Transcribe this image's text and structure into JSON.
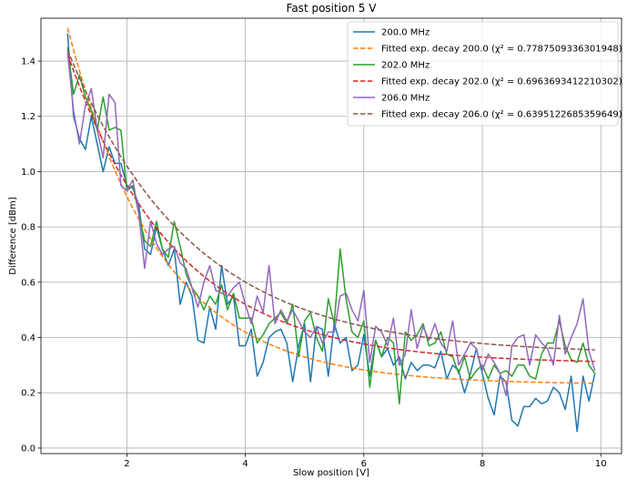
{
  "chart_data": {
    "type": "line",
    "title": "Fast position 5 V",
    "xlabel": "Slow position [V]",
    "ylabel": "Difference [dBm]",
    "xlim": [
      0.55,
      10.35
    ],
    "ylim": [
      -0.02,
      1.555
    ],
    "xticks": [
      2,
      4,
      6,
      8,
      10
    ],
    "yticks": [
      0.0,
      0.2,
      0.4,
      0.6,
      0.8,
      1.0,
      1.2,
      1.4
    ],
    "ytick_labels": [
      "0.0",
      "0.2",
      "0.4",
      "0.6",
      "0.8",
      "1.0",
      "1.2",
      "1.4"
    ],
    "xtick_labels": [
      "2",
      "4",
      "6",
      "8",
      "10"
    ],
    "grid": true,
    "legend_position": "top-right",
    "x": [
      1.0,
      1.1,
      1.2,
      1.3,
      1.4,
      1.5,
      1.6,
      1.7,
      1.8,
      1.9,
      2.0,
      2.1,
      2.2,
      2.3,
      2.4,
      2.5,
      2.6,
      2.7,
      2.8,
      2.9,
      3.0,
      3.1,
      3.2,
      3.3,
      3.4,
      3.5,
      3.6,
      3.7,
      3.8,
      3.9,
      4.0,
      4.1,
      4.2,
      4.3,
      4.4,
      4.5,
      4.6,
      4.7,
      4.8,
      4.9,
      5.0,
      5.1,
      5.2,
      5.3,
      5.4,
      5.5,
      5.6,
      5.7,
      5.8,
      5.9,
      6.0,
      6.1,
      6.2,
      6.3,
      6.4,
      6.5,
      6.6,
      6.7,
      6.8,
      6.9,
      7.0,
      7.1,
      7.2,
      7.3,
      7.4,
      7.5,
      7.6,
      7.7,
      7.8,
      7.9,
      8.0,
      8.1,
      8.2,
      8.3,
      8.4,
      8.5,
      8.6,
      8.7,
      8.8,
      8.9,
      9.0,
      9.1,
      9.2,
      9.3,
      9.4,
      9.5,
      9.6,
      9.7,
      9.8,
      9.9
    ],
    "series": [
      {
        "name": "200.0 MHz",
        "color": "#1f77b4",
        "style": "solid",
        "values": [
          1.5,
          1.2,
          1.12,
          1.08,
          1.2,
          1.1,
          1.0,
          1.09,
          1.03,
          1.03,
          0.95,
          0.94,
          0.88,
          0.72,
          0.7,
          0.8,
          0.72,
          0.66,
          0.72,
          0.52,
          0.6,
          0.55,
          0.39,
          0.38,
          0.51,
          0.43,
          0.66,
          0.52,
          0.55,
          0.37,
          0.37,
          0.43,
          0.26,
          0.31,
          0.4,
          0.42,
          0.43,
          0.38,
          0.24,
          0.37,
          0.45,
          0.24,
          0.44,
          0.43,
          0.26,
          0.45,
          0.38,
          0.4,
          0.28,
          0.3,
          0.41,
          0.26,
          0.39,
          0.33,
          0.36,
          0.3,
          0.33,
          0.25,
          0.31,
          0.28,
          0.3,
          0.3,
          0.29,
          0.35,
          0.25,
          0.3,
          0.28,
          0.2,
          0.27,
          0.36,
          0.27,
          0.18,
          0.12,
          0.26,
          0.24,
          0.1,
          0.08,
          0.15,
          0.15,
          0.18,
          0.16,
          0.17,
          0.22,
          0.2,
          0.14,
          0.26,
          0.06,
          0.26,
          0.17,
          0.27
        ]
      },
      {
        "name": "Fitted exp. decay 200.0 ($\\chi^2 = 0.778750933630194$8)",
        "legend_label": "Fitted exp. decay 200.0 (χ² = 0.7787509336301948)",
        "color": "#ff7f0e",
        "style": "dashed",
        "model": {
          "a": 1.29,
          "k": 0.64,
          "c": 0.23,
          "x0": 1.0
        }
      },
      {
        "name": "202.0 MHz",
        "color": "#2ca02c",
        "style": "solid",
        "values": [
          1.45,
          1.28,
          1.35,
          1.27,
          1.22,
          1.15,
          1.27,
          1.15,
          1.16,
          1.15,
          0.93,
          0.95,
          0.85,
          0.75,
          0.73,
          0.82,
          0.72,
          0.69,
          0.82,
          0.73,
          0.63,
          0.58,
          0.55,
          0.5,
          0.55,
          0.52,
          0.59,
          0.5,
          0.56,
          0.47,
          0.47,
          0.47,
          0.38,
          0.41,
          0.45,
          0.47,
          0.49,
          0.45,
          0.52,
          0.33,
          0.46,
          0.49,
          0.4,
          0.35,
          0.54,
          0.45,
          0.72,
          0.54,
          0.42,
          0.4,
          0.46,
          0.22,
          0.39,
          0.33,
          0.4,
          0.38,
          0.16,
          0.42,
          0.39,
          0.41,
          0.45,
          0.37,
          0.38,
          0.42,
          0.34,
          0.33,
          0.27,
          0.33,
          0.25,
          0.28,
          0.3,
          0.25,
          0.3,
          0.27,
          0.28,
          0.26,
          0.3,
          0.3,
          0.26,
          0.25,
          0.34,
          0.38,
          0.38,
          0.46,
          0.37,
          0.32,
          0.31,
          0.38,
          0.3,
          0.27
        ]
      },
      {
        "name": "Fitted exp. decay 202.0 ($\\chi^2 = 0.6963693412210302$)",
        "legend_label": "Fitted exp. decay 202.0 (χ² = 0.6963693412210302)",
        "color": "#d62728",
        "style": "dashed",
        "model": {
          "a": 1.12,
          "k": 0.55,
          "c": 0.305,
          "x0": 1.0
        }
      },
      {
        "name": "206.0 MHz",
        "color": "#9467bd",
        "style": "solid",
        "values": [
          1.43,
          1.22,
          1.1,
          1.24,
          1.3,
          1.15,
          1.05,
          1.28,
          1.25,
          0.95,
          0.93,
          0.97,
          0.85,
          0.65,
          0.82,
          0.74,
          0.7,
          0.72,
          0.73,
          0.67,
          0.65,
          0.58,
          0.51,
          0.6,
          0.66,
          0.57,
          0.56,
          0.55,
          0.58,
          0.6,
          0.52,
          0.45,
          0.55,
          0.49,
          0.66,
          0.45,
          0.5,
          0.46,
          0.5,
          0.46,
          0.42,
          0.4,
          0.44,
          0.38,
          0.42,
          0.42,
          0.55,
          0.56,
          0.5,
          0.46,
          0.57,
          0.31,
          0.44,
          0.42,
          0.37,
          0.47,
          0.3,
          0.34,
          0.5,
          0.36,
          0.44,
          0.39,
          0.45,
          0.38,
          0.35,
          0.46,
          0.3,
          0.34,
          0.38,
          0.36,
          0.28,
          0.34,
          0.31,
          0.27,
          0.19,
          0.37,
          0.4,
          0.41,
          0.3,
          0.41,
          0.38,
          0.36,
          0.3,
          0.48,
          0.34,
          0.4,
          0.45,
          0.54,
          0.35,
          0.28
        ]
      },
      {
        "name": "Fitted exp. decay 206.0 ($\\chi^2 = 0.6395122685359649$)",
        "legend_label": "Fitted exp. decay 206.0 (χ² = 0.6395122685359649)",
        "color": "#8c564b",
        "style": "dashed",
        "model": {
          "a": 1.1,
          "k": 0.48,
          "c": 0.34,
          "x0": 1.0
        }
      }
    ]
  }
}
